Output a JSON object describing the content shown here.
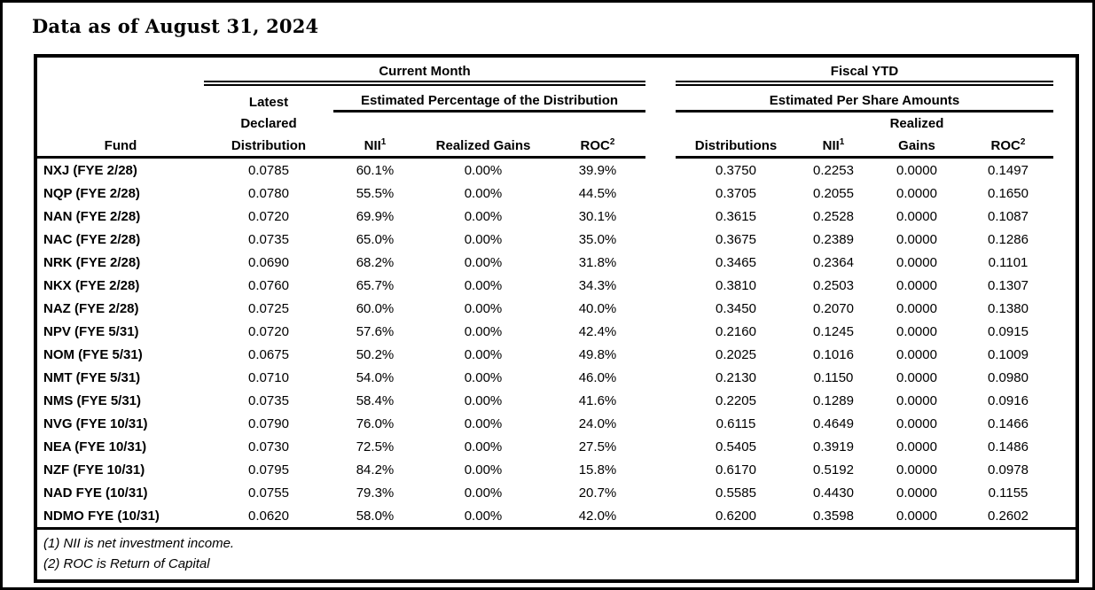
{
  "title": "Data as of August 31, 2024",
  "table": {
    "groups": {
      "current_month": "Current Month",
      "fiscal_ytd": "Fiscal YTD"
    },
    "subgroups": {
      "est_pct": "Estimated Percentage of the Distribution",
      "est_per_share": "Estimated Per Share Amounts"
    },
    "columns": {
      "fund": "Fund",
      "latest_declared": [
        "Latest",
        "Declared",
        "Distribution"
      ],
      "nii": {
        "text": "NII",
        "sup": "1"
      },
      "realized_gains": "Realized Gains",
      "roc": {
        "text": "ROC",
        "sup": "2"
      },
      "distributions": "Distributions",
      "realized": "Realized",
      "gains": "Gains"
    },
    "rows": [
      {
        "fund": "NXJ (FYE 2/28)",
        "latest_declared": "0.0785",
        "cm_nii": "60.1%",
        "cm_realized_gains": "0.00%",
        "cm_roc": "39.9%",
        "ytd_distributions": "0.3750",
        "ytd_nii": "0.2253",
        "ytd_realized_gains": "0.0000",
        "ytd_roc": "0.1497"
      },
      {
        "fund": "NQP (FYE 2/28)",
        "latest_declared": "0.0780",
        "cm_nii": "55.5%",
        "cm_realized_gains": "0.00%",
        "cm_roc": "44.5%",
        "ytd_distributions": "0.3705",
        "ytd_nii": "0.2055",
        "ytd_realized_gains": "0.0000",
        "ytd_roc": "0.1650"
      },
      {
        "fund": "NAN (FYE 2/28)",
        "latest_declared": "0.0720",
        "cm_nii": "69.9%",
        "cm_realized_gains": "0.00%",
        "cm_roc": "30.1%",
        "ytd_distributions": "0.3615",
        "ytd_nii": "0.2528",
        "ytd_realized_gains": "0.0000",
        "ytd_roc": "0.1087"
      },
      {
        "fund": "NAC (FYE 2/28)",
        "latest_declared": "0.0735",
        "cm_nii": "65.0%",
        "cm_realized_gains": "0.00%",
        "cm_roc": "35.0%",
        "ytd_distributions": "0.3675",
        "ytd_nii": "0.2389",
        "ytd_realized_gains": "0.0000",
        "ytd_roc": "0.1286"
      },
      {
        "fund": "NRK (FYE 2/28)",
        "latest_declared": "0.0690",
        "cm_nii": "68.2%",
        "cm_realized_gains": "0.00%",
        "cm_roc": "31.8%",
        "ytd_distributions": "0.3465",
        "ytd_nii": "0.2364",
        "ytd_realized_gains": "0.0000",
        "ytd_roc": "0.1101"
      },
      {
        "fund": "NKX (FYE 2/28)",
        "latest_declared": "0.0760",
        "cm_nii": "65.7%",
        "cm_realized_gains": "0.00%",
        "cm_roc": "34.3%",
        "ytd_distributions": "0.3810",
        "ytd_nii": "0.2503",
        "ytd_realized_gains": "0.0000",
        "ytd_roc": "0.1307"
      },
      {
        "fund": "NAZ (FYE 2/28)",
        "latest_declared": "0.0725",
        "cm_nii": "60.0%",
        "cm_realized_gains": "0.00%",
        "cm_roc": "40.0%",
        "ytd_distributions": "0.3450",
        "ytd_nii": "0.2070",
        "ytd_realized_gains": "0.0000",
        "ytd_roc": "0.1380"
      },
      {
        "fund": "NPV (FYE 5/31)",
        "latest_declared": "0.0720",
        "cm_nii": "57.6%",
        "cm_realized_gains": "0.00%",
        "cm_roc": "42.4%",
        "ytd_distributions": "0.2160",
        "ytd_nii": "0.1245",
        "ytd_realized_gains": "0.0000",
        "ytd_roc": "0.0915"
      },
      {
        "fund": "NOM (FYE 5/31)",
        "latest_declared": "0.0675",
        "cm_nii": "50.2%",
        "cm_realized_gains": "0.00%",
        "cm_roc": "49.8%",
        "ytd_distributions": "0.2025",
        "ytd_nii": "0.1016",
        "ytd_realized_gains": "0.0000",
        "ytd_roc": "0.1009"
      },
      {
        "fund": "NMT (FYE 5/31)",
        "latest_declared": "0.0710",
        "cm_nii": "54.0%",
        "cm_realized_gains": "0.00%",
        "cm_roc": "46.0%",
        "ytd_distributions": "0.2130",
        "ytd_nii": "0.1150",
        "ytd_realized_gains": "0.0000",
        "ytd_roc": "0.0980"
      },
      {
        "fund": "NMS (FYE 5/31)",
        "latest_declared": "0.0735",
        "cm_nii": "58.4%",
        "cm_realized_gains": "0.00%",
        "cm_roc": "41.6%",
        "ytd_distributions": "0.2205",
        "ytd_nii": "0.1289",
        "ytd_realized_gains": "0.0000",
        "ytd_roc": "0.0916"
      },
      {
        "fund": "NVG (FYE 10/31)",
        "latest_declared": "0.0790",
        "cm_nii": "76.0%",
        "cm_realized_gains": "0.00%",
        "cm_roc": "24.0%",
        "ytd_distributions": "0.6115",
        "ytd_nii": "0.4649",
        "ytd_realized_gains": "0.0000",
        "ytd_roc": "0.1466"
      },
      {
        "fund": "NEA (FYE 10/31)",
        "latest_declared": "0.0730",
        "cm_nii": "72.5%",
        "cm_realized_gains": "0.00%",
        "cm_roc": "27.5%",
        "ytd_distributions": "0.5405",
        "ytd_nii": "0.3919",
        "ytd_realized_gains": "0.0000",
        "ytd_roc": "0.1486"
      },
      {
        "fund": "NZF (FYE 10/31)",
        "latest_declared": "0.0795",
        "cm_nii": "84.2%",
        "cm_realized_gains": "0.00%",
        "cm_roc": "15.8%",
        "ytd_distributions": "0.6170",
        "ytd_nii": "0.5192",
        "ytd_realized_gains": "0.0000",
        "ytd_roc": "0.0978"
      },
      {
        "fund": "NAD FYE (10/31)",
        "latest_declared": "0.0755",
        "cm_nii": "79.3%",
        "cm_realized_gains": "0.00%",
        "cm_roc": "20.7%",
        "ytd_distributions": "0.5585",
        "ytd_nii": "0.4430",
        "ytd_realized_gains": "0.0000",
        "ytd_roc": "0.1155"
      },
      {
        "fund": "NDMO FYE (10/31)",
        "latest_declared": "0.0620",
        "cm_nii": "58.0%",
        "cm_realized_gains": "0.00%",
        "cm_roc": "42.0%",
        "ytd_distributions": "0.6200",
        "ytd_nii": "0.3598",
        "ytd_realized_gains": "0.0000",
        "ytd_roc": "0.2602"
      }
    ]
  },
  "footnotes": [
    "(1) NII is net investment income.",
    "(2) ROC is Return of Capital"
  ]
}
